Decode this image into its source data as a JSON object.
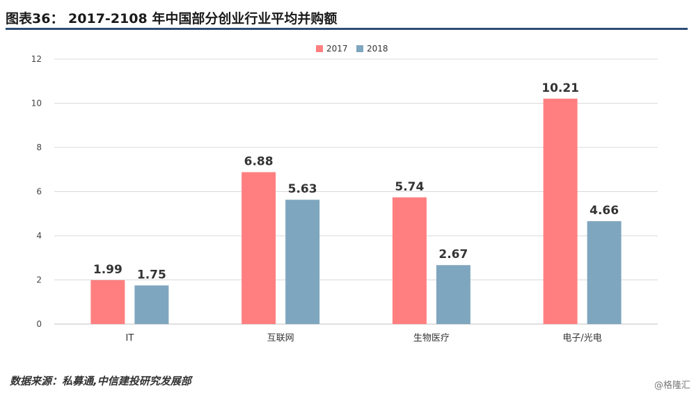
{
  "header": {
    "title": "图表36： 2017-2108 年中国部分创业行业平均并购额"
  },
  "footer": {
    "source": "数据来源：私募通,中信建投研究发展部",
    "watermark": "@格隆汇"
  },
  "colors": {
    "rule": "#2c4c74",
    "series_2017": "#ff7f80",
    "series_2018": "#7fa6bf",
    "gridline": "#d9d9d9"
  },
  "chart_data": {
    "type": "bar",
    "categories": [
      "IT",
      "互联网",
      "生物医疗",
      "电子/光电"
    ],
    "series": [
      {
        "name": "2017",
        "values": [
          1.99,
          6.88,
          5.74,
          10.21
        ],
        "labels": [
          "1.99",
          "6.88",
          "5.74",
          "10.21"
        ]
      },
      {
        "name": "2018",
        "values": [
          1.75,
          5.63,
          2.67,
          4.66
        ],
        "labels": [
          "1.75",
          "5.63",
          "2.67",
          "4.66"
        ]
      }
    ],
    "ylim": [
      0,
      12
    ],
    "yticks": [
      "0",
      "2",
      "4",
      "6",
      "8",
      "10",
      "12"
    ],
    "grid": true,
    "legend_position": "top-center"
  }
}
